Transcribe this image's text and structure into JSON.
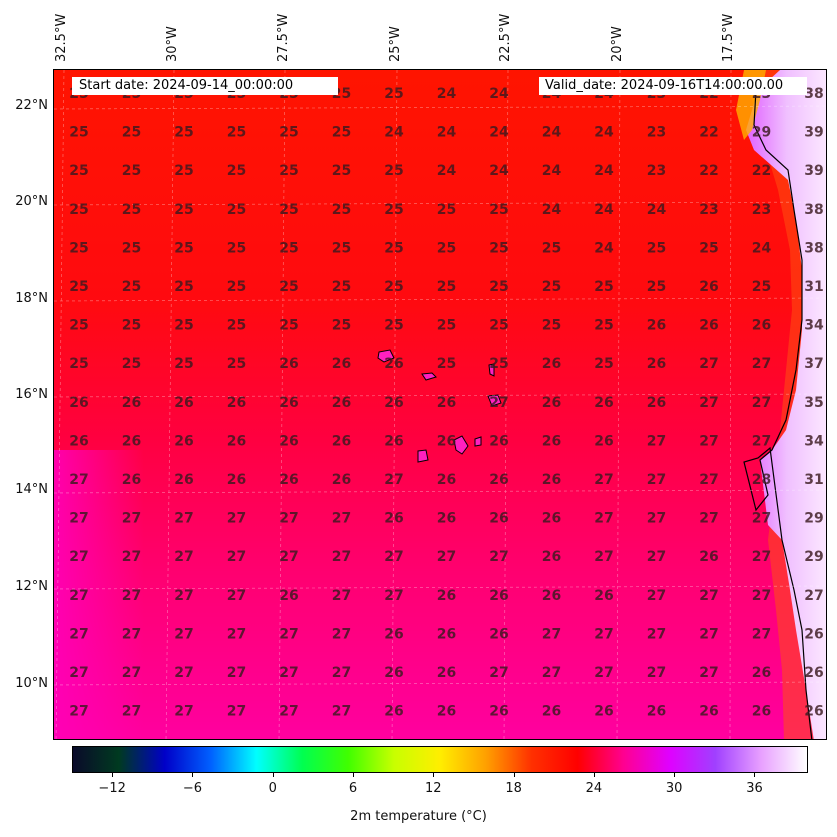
{
  "header": {
    "start_date": "Start date: 2024-09-14_00:00:00",
    "valid_date": "Valid_date: 2024-09-16T14:00:00.00"
  },
  "axes": {
    "lon_labels": [
      "32.5°W",
      "30°W",
      "27.5°W",
      "25°W",
      "22.5°W",
      "20°W",
      "17.5°W"
    ],
    "lat_labels": [
      "22°N",
      "20°N",
      "18°N",
      "16°N",
      "14°N",
      "12°N",
      "10°N"
    ]
  },
  "colorbar": {
    "label": "2m temperature ($^\\circ$C)",
    "label_display": "2m temperature (°C)",
    "ticks": [
      "−12",
      "−6",
      "0",
      "6",
      "12",
      "18",
      "24",
      "30",
      "36"
    ],
    "range": [
      -15,
      40
    ],
    "colors": [
      "#0a0a2a",
      "#003a20",
      "#0000c8",
      "#0060ff",
      "#00ffff",
      "#00ff50",
      "#40ff00",
      "#c8ff00",
      "#ffee00",
      "#ffa000",
      "#ff3000",
      "#ff0000",
      "#ff0090",
      "#e000ff",
      "#a040ff",
      "#e8a0ff",
      "#ffffff"
    ]
  },
  "grid_values": [
    [
      "25",
      "25",
      "25",
      "25",
      "25",
      "25",
      "25",
      "24",
      "24",
      "24",
      "24",
      "23",
      "22",
      "23",
      "38"
    ],
    [
      "25",
      "25",
      "25",
      "25",
      "25",
      "25",
      "24",
      "24",
      "24",
      "24",
      "24",
      "23",
      "22",
      "29",
      "39"
    ],
    [
      "25",
      "25",
      "25",
      "25",
      "25",
      "25",
      "25",
      "24",
      "24",
      "24",
      "24",
      "23",
      "22",
      "22",
      "39"
    ],
    [
      "25",
      "25",
      "25",
      "25",
      "25",
      "25",
      "25",
      "25",
      "25",
      "24",
      "24",
      "24",
      "23",
      "23",
      "38"
    ],
    [
      "25",
      "25",
      "25",
      "25",
      "25",
      "25",
      "25",
      "25",
      "25",
      "25",
      "24",
      "25",
      "25",
      "24",
      "38"
    ],
    [
      "25",
      "25",
      "25",
      "25",
      "25",
      "25",
      "25",
      "25",
      "25",
      "25",
      "25",
      "25",
      "26",
      "25",
      "31"
    ],
    [
      "25",
      "25",
      "25",
      "25",
      "25",
      "25",
      "25",
      "25",
      "25",
      "25",
      "25",
      "26",
      "26",
      "26",
      "34"
    ],
    [
      "25",
      "25",
      "25",
      "25",
      "26",
      "26",
      "26",
      "25",
      "25",
      "26",
      "25",
      "26",
      "27",
      "27",
      "37"
    ],
    [
      "26",
      "26",
      "26",
      "26",
      "26",
      "26",
      "26",
      "26",
      "27",
      "26",
      "26",
      "26",
      "27",
      "27",
      "35"
    ],
    [
      "26",
      "26",
      "26",
      "26",
      "26",
      "26",
      "26",
      "26",
      "26",
      "26",
      "26",
      "27",
      "27",
      "27",
      "34"
    ],
    [
      "27",
      "26",
      "26",
      "26",
      "26",
      "26",
      "27",
      "26",
      "26",
      "26",
      "27",
      "27",
      "27",
      "28",
      "31"
    ],
    [
      "27",
      "27",
      "27",
      "27",
      "27",
      "27",
      "26",
      "26",
      "26",
      "26",
      "27",
      "27",
      "27",
      "27",
      "29"
    ],
    [
      "27",
      "27",
      "27",
      "27",
      "27",
      "27",
      "27",
      "27",
      "27",
      "26",
      "27",
      "27",
      "26",
      "27",
      "29"
    ],
    [
      "27",
      "27",
      "27",
      "27",
      "26",
      "27",
      "27",
      "26",
      "26",
      "26",
      "26",
      "27",
      "27",
      "27",
      "27"
    ],
    [
      "27",
      "27",
      "27",
      "27",
      "27",
      "27",
      "26",
      "26",
      "26",
      "27",
      "27",
      "27",
      "27",
      "27",
      "26"
    ],
    [
      "27",
      "27",
      "27",
      "27",
      "27",
      "27",
      "26",
      "26",
      "27",
      "27",
      "27",
      "27",
      "27",
      "26",
      "26"
    ],
    [
      "27",
      "27",
      "27",
      "27",
      "27",
      "27",
      "26",
      "26",
      "26",
      "26",
      "26",
      "26",
      "26",
      "26",
      "26"
    ]
  ]
}
